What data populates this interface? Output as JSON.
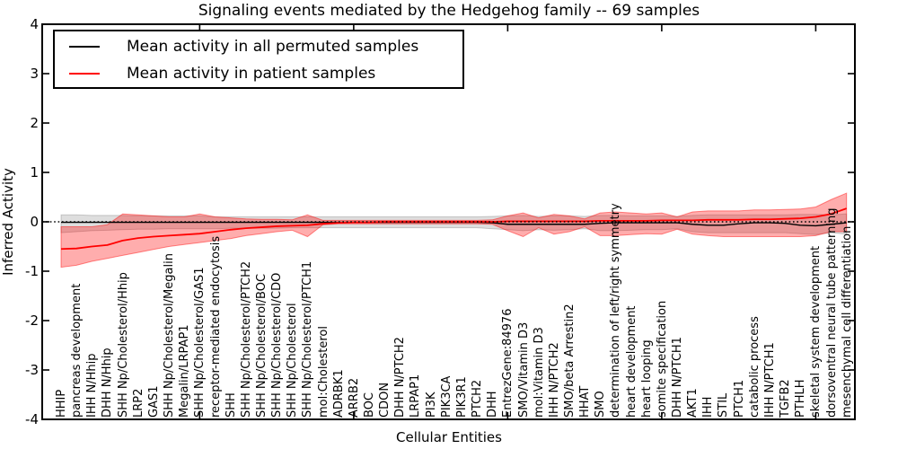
{
  "figure": {
    "title": "Signaling events mediated by the Hedgehog family -- 69 samples",
    "xlabel": "Cellular Entities",
    "ylabel": "Inferred Activity"
  },
  "legend": {
    "entries": [
      {
        "label": "Mean activity in all permuted samples",
        "color": "#000000"
      },
      {
        "label": "Mean activity in patient samples",
        "color": "#ff0000"
      }
    ]
  },
  "colors": {
    "patient_line": "#ff0000",
    "permuted_line": "#000000",
    "patient_band": "#ff0000",
    "permuted_band": "#000000",
    "frame": "#000000"
  },
  "chart_data": {
    "type": "line",
    "title": "Signaling events mediated by the Hedgehog family -- 69 samples",
    "xlabel": "Cellular Entities",
    "ylabel": "Inferred Activity",
    "ylim": [
      -4,
      4
    ],
    "yticks": [
      4,
      3,
      2,
      1,
      0,
      -1,
      -2,
      -3,
      -4
    ],
    "xtick_major_every": 10,
    "grid": false,
    "legend_position": "upper left",
    "zero_line": {
      "style": "dotted",
      "color": "#000000",
      "y": 0
    },
    "categories": [
      "HHIP",
      "pancreas development",
      "IHH N/Hhip",
      "DHH N/Hhip",
      "SHH Np/Cholesterol/Hhip",
      "LRP2",
      "GAS1",
      "SHH Np/Cholesterol/Megalin",
      "Megalin/LRPAP1",
      "SHH Np/Cholesterol/GAS1",
      "receptor-mediated endocytosis",
      "SHH",
      "SHH Np/Cholesterol/PTCH2",
      "SHH Np/Cholesterol/BOC",
      "SHH Np/Cholesterol/CDO",
      "SHH Np/Cholesterol",
      "SHH Np/Cholesterol/PTCH1",
      "mol:Cholesterol",
      "ADRBK1",
      "ARRB2",
      "BOC",
      "CDON",
      "DHH N/PTCH2",
      "LRPAP1",
      "PI3K",
      "PIK3CA",
      "PIK3R1",
      "PTCH2",
      "DHH",
      "EntrezGene:84976",
      "SMO/Vitamin D3",
      "mol:Vitamin D3",
      "IHH N/PTCH2",
      "SMO/beta Arrestin2",
      "HHAT",
      "SMO",
      "determination of left/right symmetry",
      "heart development",
      "heart looping",
      "somite specification",
      "DHH N/PTCH1",
      "AKT1",
      "IHH",
      "STIL",
      "PTCH1",
      "catabolic process",
      "IHH N/PTCH1",
      "TGFB2",
      "PTHLH",
      "skeletal system development",
      "dorsoventral neural tube patterning",
      "mesenchymal cell differentiation"
    ],
    "series": [
      {
        "name": "permuted-mean-line",
        "label": "Mean activity in all permuted samples",
        "color": "#000000",
        "width": 1.4,
        "values": [
          -0.01,
          -0.01,
          -0.01,
          -0.01,
          -0.01,
          -0.01,
          -0.01,
          -0.01,
          -0.01,
          -0.01,
          -0.01,
          -0.01,
          -0.01,
          -0.01,
          -0.01,
          -0.01,
          -0.01,
          -0.01,
          -0.01,
          -0.01,
          -0.01,
          -0.01,
          -0.01,
          -0.01,
          -0.01,
          -0.01,
          -0.01,
          -0.01,
          -0.02,
          -0.05,
          -0.05,
          -0.05,
          -0.05,
          -0.05,
          -0.05,
          -0.03,
          -0.02,
          -0.02,
          -0.02,
          -0.02,
          -0.02,
          -0.05,
          -0.07,
          -0.07,
          -0.04,
          -0.02,
          -0.02,
          -0.03,
          -0.07,
          -0.08,
          -0.05,
          -0.02
        ]
      },
      {
        "name": "patient-mean-line",
        "label": "Mean activity in patient samples",
        "color": "#ff0000",
        "width": 1.8,
        "values": [
          -0.55,
          -0.54,
          -0.5,
          -0.47,
          -0.38,
          -0.33,
          -0.3,
          -0.28,
          -0.26,
          -0.24,
          -0.2,
          -0.16,
          -0.13,
          -0.11,
          -0.09,
          -0.08,
          -0.07,
          -0.04,
          -0.02,
          -0.01,
          -0.01,
          0,
          0,
          0,
          0,
          0,
          0,
          0,
          0,
          0.01,
          0.01,
          0.01,
          0.01,
          0.01,
          0.01,
          0.02,
          0.02,
          0.02,
          0.02,
          0.03,
          0.03,
          0.03,
          0.04,
          0.04,
          0.04,
          0.05,
          0.05,
          0.06,
          0.07,
          0.1,
          0.16,
          0.27
        ]
      }
    ],
    "bands": [
      {
        "name": "permuted-range",
        "color": "#000000",
        "opacity": 0.13,
        "low": [
          -0.22,
          -0.2,
          -0.18,
          -0.17,
          -0.16,
          -0.15,
          -0.15,
          -0.14,
          -0.14,
          -0.14,
          -0.14,
          -0.13,
          -0.13,
          -0.13,
          -0.13,
          -0.12,
          -0.12,
          -0.12,
          -0.12,
          -0.12,
          -0.12,
          -0.12,
          -0.12,
          -0.12,
          -0.12,
          -0.12,
          -0.12,
          -0.12,
          -0.14,
          -0.16,
          -0.18,
          -0.16,
          -0.17,
          -0.16,
          -0.14,
          -0.18,
          -0.18,
          -0.17,
          -0.16,
          -0.16,
          -0.14,
          -0.2,
          -0.22,
          -0.22,
          -0.22,
          -0.22,
          -0.22,
          -0.22,
          -0.24,
          -0.26,
          -0.22,
          -0.25
        ],
        "high": [
          0.14,
          0.14,
          0.13,
          0.13,
          0.13,
          0.12,
          0.12,
          0.12,
          0.12,
          0.12,
          0.1,
          0.1,
          0.1,
          0.1,
          0.1,
          0.1,
          0.1,
          0.1,
          0.1,
          0.1,
          0.1,
          0.1,
          0.1,
          0.1,
          0.1,
          0.1,
          0.1,
          0.1,
          0.11,
          0.12,
          0.13,
          0.11,
          0.12,
          0.12,
          0.11,
          0.13,
          0.13,
          0.12,
          0.12,
          0.12,
          0.11,
          0.13,
          0.14,
          0.14,
          0.14,
          0.14,
          0.14,
          0.14,
          0.15,
          0.15,
          0.14,
          0.16
        ]
      },
      {
        "name": "patient-range",
        "color": "#ff0000",
        "opacity": 0.32,
        "low": [
          -0.92,
          -0.88,
          -0.8,
          -0.74,
          -0.68,
          -0.62,
          -0.56,
          -0.5,
          -0.46,
          -0.42,
          -0.38,
          -0.34,
          -0.28,
          -0.24,
          -0.2,
          -0.17,
          -0.3,
          -0.06,
          -0.04,
          -0.04,
          -0.04,
          -0.04,
          -0.04,
          -0.04,
          -0.04,
          -0.04,
          -0.04,
          -0.04,
          -0.05,
          -0.18,
          -0.3,
          -0.12,
          -0.25,
          -0.2,
          -0.1,
          -0.28,
          -0.28,
          -0.26,
          -0.24,
          -0.25,
          -0.15,
          -0.25,
          -0.28,
          -0.3,
          -0.3,
          -0.3,
          -0.3,
          -0.3,
          -0.3,
          -0.28,
          -0.2,
          -0.2
        ],
        "high": [
          -0.1,
          -0.1,
          -0.1,
          -0.06,
          0.16,
          0.14,
          0.12,
          0.1,
          0.1,
          0.16,
          0.1,
          0.08,
          0.06,
          0.05,
          0.05,
          0.04,
          0.14,
          0.03,
          0.03,
          0.03,
          0.03,
          0.03,
          0.03,
          0.03,
          0.03,
          0.03,
          0.03,
          0.03,
          0.04,
          0.12,
          0.18,
          0.08,
          0.15,
          0.12,
          0.06,
          0.18,
          0.2,
          0.18,
          0.16,
          0.18,
          0.1,
          0.2,
          0.22,
          0.22,
          0.22,
          0.24,
          0.24,
          0.25,
          0.26,
          0.3,
          0.45,
          0.58
        ]
      }
    ]
  }
}
